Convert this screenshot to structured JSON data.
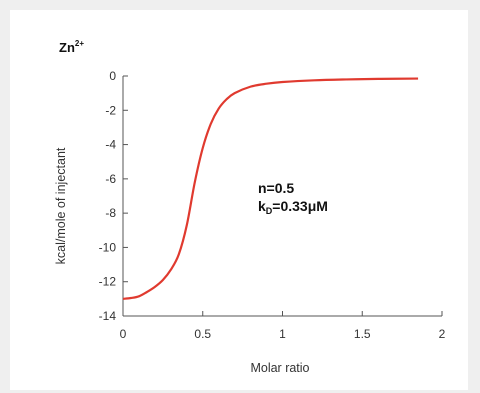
{
  "chart_data": {
    "type": "line",
    "title": "Zn",
    "title_superscript": "2+",
    "xlabel": "Molar ratio",
    "ylabel": "kcal/mole of injectant",
    "xlim": [
      0,
      2
    ],
    "ylim": [
      -14,
      0
    ],
    "x_ticks": [
      0,
      0.5,
      1,
      1.5,
      2
    ],
    "x_tick_labels": [
      "0",
      "0.5",
      "1",
      "1.5",
      "2"
    ],
    "y_ticks": [
      0,
      -2,
      -4,
      -6,
      -8,
      -10,
      -12,
      -14
    ],
    "y_tick_labels": [
      "0",
      "-2",
      "-4",
      "-6",
      "-8",
      "-10",
      "-12",
      "-14"
    ],
    "grid": false,
    "annotations": [
      {
        "name": "n-value",
        "text": "n=0.5"
      },
      {
        "name": "kd-value",
        "prefix": "k",
        "subscript": "D",
        "suffix": "=0.33μM"
      }
    ],
    "series": [
      {
        "color": "#e03a2f",
        "x": [
          0,
          0.05,
          0.1,
          0.15,
          0.2,
          0.25,
          0.3,
          0.35,
          0.4,
          0.45,
          0.5,
          0.55,
          0.6,
          0.65,
          0.7,
          0.8,
          0.9,
          1.0,
          1.2,
          1.4,
          1.6,
          1.85
        ],
        "y": [
          -13.0,
          -12.95,
          -12.85,
          -12.6,
          -12.3,
          -11.9,
          -11.3,
          -10.4,
          -8.7,
          -6.2,
          -4.2,
          -2.8,
          -1.9,
          -1.35,
          -1.0,
          -0.62,
          -0.45,
          -0.35,
          -0.25,
          -0.2,
          -0.17,
          -0.15
        ]
      }
    ]
  }
}
